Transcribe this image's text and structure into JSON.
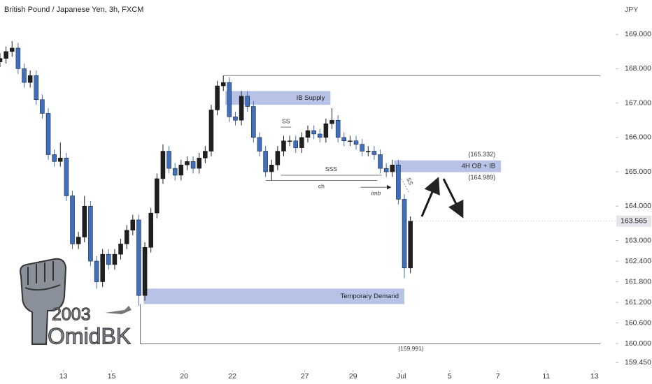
{
  "header": {
    "title": "British Pound / Japanese Yen, 3h, FXCM",
    "currency": "JPY"
  },
  "watermark": {
    "year": "2003",
    "name": "OmidBK"
  },
  "chart_data": {
    "type": "candlestick",
    "up_color": "#1f1f1f",
    "down_color": "#3f6fbf",
    "x": [
      0,
      2,
      4,
      6,
      8,
      10,
      12,
      14,
      16,
      18,
      20,
      22,
      24,
      26,
      28,
      30,
      32,
      34,
      36,
      38,
      40,
      42,
      44,
      46,
      48,
      50,
      52,
      54,
      56,
      58,
      60,
      62,
      64,
      66,
      68,
      70,
      72,
      74,
      76,
      78,
      80,
      82,
      84,
      86,
      88,
      90,
      92,
      94,
      96,
      98,
      100,
      102,
      104,
      106,
      108,
      110,
      112,
      114,
      116,
      118,
      120,
      122,
      124,
      126,
      128,
      130,
      132,
      134,
      136
    ],
    "open": [
      168.2,
      168.3,
      168.5,
      168.6,
      168.0,
      167.6,
      167.8,
      167.1,
      166.7,
      165.5,
      165.3,
      165.4,
      164.3,
      162.9,
      163.1,
      164.0,
      162.4,
      161.8,
      162.6,
      162.3,
      162.6,
      162.9,
      163.3,
      163.6,
      161.4,
      162.8,
      163.8,
      164.8,
      165.6,
      165.1,
      164.9,
      165.2,
      165.3,
      165.1,
      165.4,
      165.6,
      166.8,
      167.5,
      167.6,
      166.6,
      166.5,
      167.2,
      166.9,
      166.0,
      165.6,
      165.0,
      165.2,
      165.6,
      165.9,
      165.9,
      165.7,
      166.0,
      166.2,
      166.1,
      166.0,
      166.4,
      166.5,
      166.0,
      165.9,
      165.9,
      165.8,
      165.6,
      165.6,
      165.5,
      165.1,
      165.0,
      165.2,
      164.2,
      162.2
    ],
    "high": [
      168.45,
      168.65,
      168.8,
      168.75,
      168.15,
      167.95,
      167.95,
      167.25,
      166.85,
      165.65,
      165.85,
      165.55,
      164.45,
      163.25,
      164.3,
      164.15,
      162.55,
      162.75,
      162.75,
      162.75,
      163.05,
      163.45,
      163.75,
      163.75,
      162.95,
      163.95,
      164.95,
      165.8,
      165.75,
      165.25,
      165.35,
      165.45,
      165.45,
      165.55,
      165.75,
      166.95,
      167.65,
      167.8,
      167.75,
      166.75,
      167.35,
      167.35,
      167.05,
      166.15,
      165.75,
      165.35,
      165.75,
      166.05,
      166.05,
      166.05,
      166.15,
      166.35,
      166.35,
      166.25,
      166.55,
      166.85,
      166.65,
      166.15,
      166.05,
      166.05,
      165.95,
      165.75,
      165.75,
      165.65,
      165.25,
      165.35,
      165.35,
      164.35,
      163.7
    ],
    "low": [
      168.05,
      168.15,
      168.35,
      167.85,
      167.45,
      167.45,
      166.95,
      166.55,
      165.35,
      165.15,
      165.15,
      164.15,
      162.75,
      162.75,
      162.95,
      162.25,
      161.6,
      161.65,
      162.15,
      162.15,
      162.45,
      162.75,
      163.15,
      161.1,
      161.25,
      162.65,
      163.65,
      164.65,
      164.95,
      164.75,
      164.75,
      165.05,
      164.95,
      164.95,
      165.25,
      165.45,
      166.65,
      167.35,
      166.45,
      166.35,
      166.35,
      166.75,
      165.85,
      165.45,
      164.85,
      164.75,
      165.05,
      165.45,
      165.75,
      165.55,
      165.55,
      165.85,
      165.95,
      165.85,
      165.85,
      166.25,
      165.85,
      165.75,
      165.75,
      165.65,
      165.45,
      165.45,
      165.35,
      164.95,
      164.85,
      164.85,
      164.05,
      161.9,
      162.05
    ],
    "close": [
      168.3,
      168.5,
      168.6,
      168.0,
      167.6,
      167.8,
      167.1,
      166.7,
      165.5,
      165.3,
      165.4,
      164.3,
      162.9,
      163.1,
      164.0,
      162.4,
      161.8,
      162.6,
      162.3,
      162.6,
      162.9,
      163.3,
      163.6,
      161.4,
      162.8,
      163.8,
      164.8,
      165.6,
      165.1,
      164.9,
      165.2,
      165.3,
      165.1,
      165.4,
      165.6,
      166.8,
      167.5,
      167.6,
      166.6,
      166.5,
      167.2,
      166.9,
      166.0,
      165.6,
      165.0,
      165.2,
      165.6,
      165.9,
      165.9,
      165.7,
      166.0,
      166.2,
      166.1,
      166.0,
      166.4,
      166.5,
      166.0,
      165.9,
      165.9,
      165.8,
      165.6,
      165.6,
      165.5,
      165.1,
      165.0,
      165.2,
      164.2,
      162.2,
      163.565
    ],
    "xlim": [
      0,
      204
    ],
    "ylim": [
      159.23,
      170.0
    ],
    "xticks": [
      {
        "value": 21,
        "label": "13"
      },
      {
        "value": 37,
        "label": "15"
      },
      {
        "value": 61,
        "label": "20"
      },
      {
        "value": 77,
        "label": "22"
      },
      {
        "value": 101,
        "label": "27"
      },
      {
        "value": 117,
        "label": "29"
      },
      {
        "value": 133,
        "label": "Jul"
      },
      {
        "value": 149,
        "label": "5"
      },
      {
        "value": 165,
        "label": "7"
      },
      {
        "value": 181,
        "label": "11"
      },
      {
        "value": 197,
        "label": "13"
      }
    ],
    "yticks": [
      {
        "value": 169,
        "label": "169.000"
      },
      {
        "value": 168,
        "label": "168.000"
      },
      {
        "value": 167,
        "label": "167.000"
      },
      {
        "value": 166,
        "label": "166.000"
      },
      {
        "value": 165,
        "label": "165.000"
      },
      {
        "value": 164,
        "label": "164.000"
      },
      {
        "value": 163,
        "label": "163.000"
      },
      {
        "value": 162.4,
        "label": "162.400"
      },
      {
        "value": 161.8,
        "label": "161.800"
      },
      {
        "value": 161.2,
        "label": "161.200"
      },
      {
        "value": 160.6,
        "label": "160.600"
      },
      {
        "value": 160,
        "label": "160.000"
      },
      {
        "value": 159.45,
        "label": "159.450"
      }
    ],
    "zone_color": "#aab8e2",
    "zones": [
      {
        "label": "IB Supply",
        "low": 166.95,
        "high": 167.35,
        "x": [
          74.7,
          109.5
        ]
      },
      {
        "label": "Temporary Demand",
        "low": 161.15,
        "high": 161.6,
        "x": [
          47.6,
          134
        ]
      },
      {
        "label": "4H OB + IB",
        "low": 164.989,
        "high": 165.332,
        "value_labels": [
          "(164.989)",
          "(165.332)"
        ],
        "x": [
          130.6,
          166
        ]
      }
    ],
    "levels": [
      {
        "value": 167.8,
        "x": [
          74,
          199
        ]
      },
      {
        "value": 159.991,
        "value_label": "(159.991)",
        "x": [
          46.5,
          199
        ]
      },
      {
        "label": "SSS",
        "value": 164.9,
        "x": [
          93,
          126.5
        ]
      },
      {
        "label": "SS",
        "value": 166.3,
        "x": [
          93,
          96.5
        ]
      },
      {
        "label": "ch",
        "value": 164.75,
        "x": [
          88,
          125
        ]
      },
      {
        "label": "imb",
        "value": 164.55,
        "x": [
          119.5,
          129.5
        ],
        "arrow": true
      },
      {
        "label": "SS",
        "value": 164.6,
        "x": [
          133,
          135.5
        ],
        "dashed": true
      }
    ]
  }
}
